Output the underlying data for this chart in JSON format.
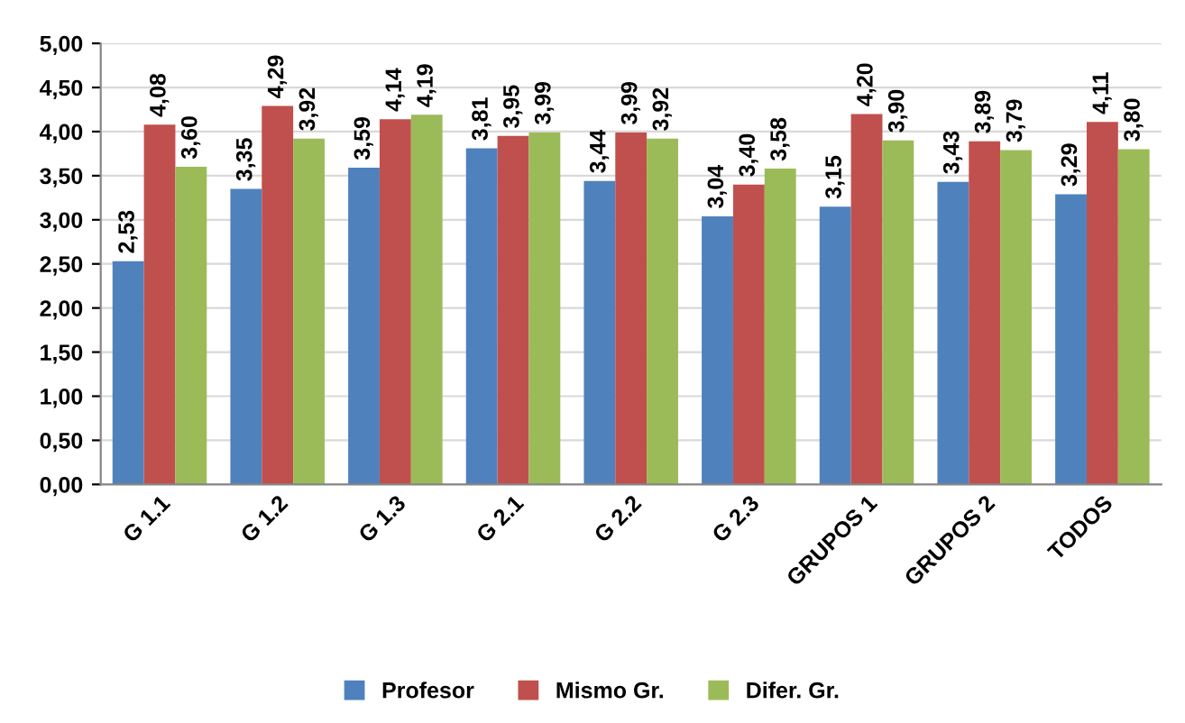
{
  "chart_data": {
    "type": "bar",
    "categories": [
      "G 1.1",
      "G 1.2",
      "G 1.3",
      "G 2.1",
      "G 2.2",
      "G 2.3",
      "GRUPOS 1",
      "GRUPOS 2",
      "TODOS"
    ],
    "series": [
      {
        "name": "Profesor",
        "color": "#4f81bd",
        "values": [
          2.53,
          3.35,
          3.59,
          3.81,
          3.44,
          3.04,
          3.15,
          3.43,
          3.29
        ],
        "value_labels": [
          "2,53",
          "3,35",
          "3,59",
          "3,81",
          "3,44",
          "3,04",
          "3,15",
          "3,43",
          "3,29"
        ]
      },
      {
        "name": "Mismo Gr.",
        "color": "#c0504d",
        "values": [
          4.08,
          4.29,
          4.14,
          3.95,
          3.99,
          3.4,
          4.2,
          3.89,
          4.11
        ],
        "value_labels": [
          "4,08",
          "4,29",
          "4,14",
          "3,95",
          "3,99",
          "3,40",
          "4,20",
          "3,89",
          "4,11"
        ]
      },
      {
        "name": "Difer. Gr.",
        "color": "#9bbb59",
        "values": [
          3.6,
          3.92,
          4.19,
          3.99,
          3.92,
          3.58,
          3.9,
          3.79,
          3.8
        ],
        "value_labels": [
          "3,60",
          "3,92",
          "4,19",
          "3,99",
          "3,92",
          "3,58",
          "3,90",
          "3,79",
          "3,80"
        ]
      }
    ],
    "ylim": [
      0,
      5
    ],
    "yticks": [
      {
        "value": 0,
        "label": "0,00"
      },
      {
        "value": 0.5,
        "label": "0,50"
      },
      {
        "value": 1,
        "label": "1,00"
      },
      {
        "value": 1.5,
        "label": "1,50"
      },
      {
        "value": 2,
        "label": "2,00"
      },
      {
        "value": 2.5,
        "label": "2,50"
      },
      {
        "value": 3,
        "label": "3,00"
      },
      {
        "value": 3.5,
        "label": "3,50"
      },
      {
        "value": 4,
        "label": "4,00"
      },
      {
        "value": 4.5,
        "label": "4,50"
      },
      {
        "value": 5,
        "label": "5,00"
      }
    ],
    "grid": "y",
    "legend": "bottom"
  }
}
